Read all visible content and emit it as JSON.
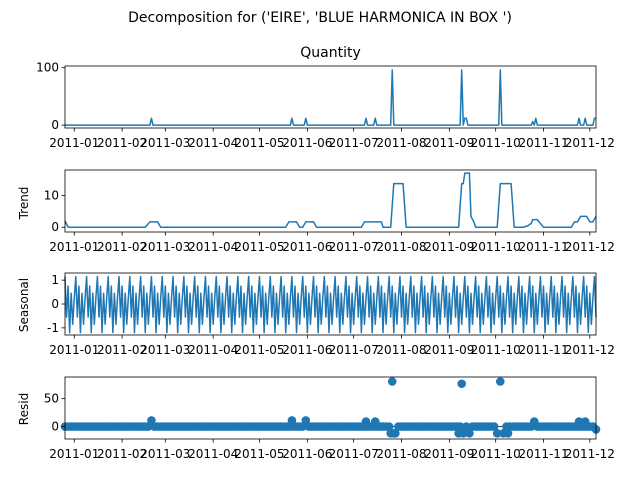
{
  "figure_title": "Decomposition for ('EIRE', 'BLUE HARMONICA IN BOX ')",
  "line_color": "#1f77b4",
  "chart_data": [
    {
      "type": "line",
      "name": "observed",
      "title": "Quantity",
      "ylabel": "",
      "ylim": [
        -5,
        103
      ],
      "yticks": [
        0,
        100
      ],
      "xticks": [
        "2011-01",
        "2011-02",
        "2011-03",
        "2011-04",
        "2011-05",
        "2011-06",
        "2011-07",
        "2011-08",
        "2011-09",
        "2011-10",
        "2011-11",
        "2011-12"
      ],
      "x_range_days": [
        0,
        344
      ],
      "points": [
        [
          0,
          0
        ],
        [
          55,
          0
        ],
        [
          56,
          12
        ],
        [
          57,
          0
        ],
        [
          146,
          0
        ],
        [
          147,
          12
        ],
        [
          148,
          0
        ],
        [
          155,
          0
        ],
        [
          156,
          12
        ],
        [
          157,
          0
        ],
        [
          194,
          0
        ],
        [
          195,
          12
        ],
        [
          196,
          0
        ],
        [
          200,
          0
        ],
        [
          201,
          12
        ],
        [
          202,
          0
        ],
        [
          211,
          0
        ],
        [
          212,
          96
        ],
        [
          213,
          0
        ],
        [
          256,
          0
        ],
        [
          257,
          96
        ],
        [
          258,
          0
        ],
        [
          259,
          12
        ],
        [
          260,
          12
        ],
        [
          261,
          0
        ],
        [
          281,
          0
        ],
        [
          282,
          96
        ],
        [
          283,
          0
        ],
        [
          302,
          0
        ],
        [
          303,
          6
        ],
        [
          304,
          0
        ],
        [
          305,
          12
        ],
        [
          306,
          0
        ],
        [
          332,
          0
        ],
        [
          333,
          12
        ],
        [
          334,
          0
        ],
        [
          336,
          0
        ],
        [
          337,
          12
        ],
        [
          338,
          0
        ],
        [
          342,
          0
        ],
        [
          343,
          12
        ],
        [
          344,
          12
        ]
      ]
    },
    {
      "type": "line",
      "name": "trend",
      "title": "",
      "ylabel": "Trend",
      "ylim": [
        -1.5,
        18
      ],
      "yticks": [
        0,
        10
      ],
      "xticks": [
        "2011-01",
        "2011-02",
        "2011-03",
        "2011-04",
        "2011-05",
        "2011-06",
        "2011-07",
        "2011-08",
        "2011-09",
        "2011-10",
        "2011-11",
        "2011-12"
      ],
      "x_range_days": [
        0,
        344
      ],
      "points": [
        [
          0,
          2
        ],
        [
          2,
          0
        ],
        [
          52,
          0
        ],
        [
          55,
          1.7
        ],
        [
          60,
          1.7
        ],
        [
          62,
          0
        ],
        [
          143,
          0
        ],
        [
          145,
          1.7
        ],
        [
          150,
          1.7
        ],
        [
          152,
          0
        ],
        [
          154,
          0
        ],
        [
          156,
          1.7
        ],
        [
          161,
          1.7
        ],
        [
          163,
          0
        ],
        [
          192,
          0
        ],
        [
          194,
          1.7
        ],
        [
          205,
          1.7
        ],
        [
          206,
          0
        ],
        [
          211,
          0
        ],
        [
          213,
          13.7
        ],
        [
          219,
          13.7
        ],
        [
          221,
          0
        ],
        [
          255,
          0
        ],
        [
          257,
          13.7
        ],
        [
          258,
          13.7
        ],
        [
          259,
          17
        ],
        [
          262,
          17
        ],
        [
          263,
          3.4
        ],
        [
          265,
          1.5
        ],
        [
          266,
          0
        ],
        [
          280,
          0
        ],
        [
          282,
          13.7
        ],
        [
          289,
          13.7
        ],
        [
          291,
          0
        ],
        [
          297,
          0
        ],
        [
          300,
          0.5
        ],
        [
          302,
          1.2
        ],
        [
          303,
          2.4
        ],
        [
          306,
          2.4
        ],
        [
          308,
          1.2
        ],
        [
          310,
          0
        ],
        [
          328,
          0
        ],
        [
          330,
          1.7
        ],
        [
          332,
          1.7
        ],
        [
          334,
          3.4
        ],
        [
          338,
          3.4
        ],
        [
          340,
          1.7
        ],
        [
          342,
          1.7
        ],
        [
          344,
          3.4
        ]
      ]
    },
    {
      "type": "line",
      "name": "seasonal",
      "title": "",
      "ylabel": "Seasonal",
      "ylim": [
        -1.3,
        1.3
      ],
      "yticks": [
        -1,
        0,
        1
      ],
      "xticks": [
        "2011-01",
        "2011-02",
        "2011-03",
        "2011-04",
        "2011-05",
        "2011-06",
        "2011-07",
        "2011-08",
        "2011-09",
        "2011-10",
        "2011-11",
        "2011-12"
      ],
      "x_range_days": [
        0,
        344
      ],
      "period_days": 7,
      "pattern": [
        1.15,
        -0.55,
        0.75,
        -1.2,
        0.45,
        -0.85,
        0.25
      ]
    },
    {
      "type": "scatter",
      "name": "resid",
      "title": "",
      "ylabel": "Resid",
      "ylim": [
        -22,
        88
      ],
      "yticks": [
        0,
        50
      ],
      "xticks": [
        "2011-01",
        "2011-02",
        "2011-03",
        "2011-04",
        "2011-05",
        "2011-06",
        "2011-07",
        "2011-08",
        "2011-09",
        "2011-10",
        "2011-11",
        "2011-12"
      ],
      "x_range_days": [
        0,
        344
      ],
      "baseline_step_days": 2,
      "outliers": [
        [
          56,
          11
        ],
        [
          147,
          11
        ],
        [
          156,
          11
        ],
        [
          195,
          9
        ],
        [
          201,
          9
        ],
        [
          211,
          -12
        ],
        [
          212,
          80
        ],
        [
          213,
          -12
        ],
        [
          214,
          -12
        ],
        [
          257,
          76
        ],
        [
          255,
          -12
        ],
        [
          258,
          -12
        ],
        [
          262,
          -12
        ],
        [
          282,
          80
        ],
        [
          280,
          -12
        ],
        [
          284,
          -12
        ],
        [
          287,
          -12
        ],
        [
          304,
          9
        ],
        [
          333,
          9
        ],
        [
          337,
          9
        ],
        [
          344,
          -5
        ]
      ]
    }
  ]
}
